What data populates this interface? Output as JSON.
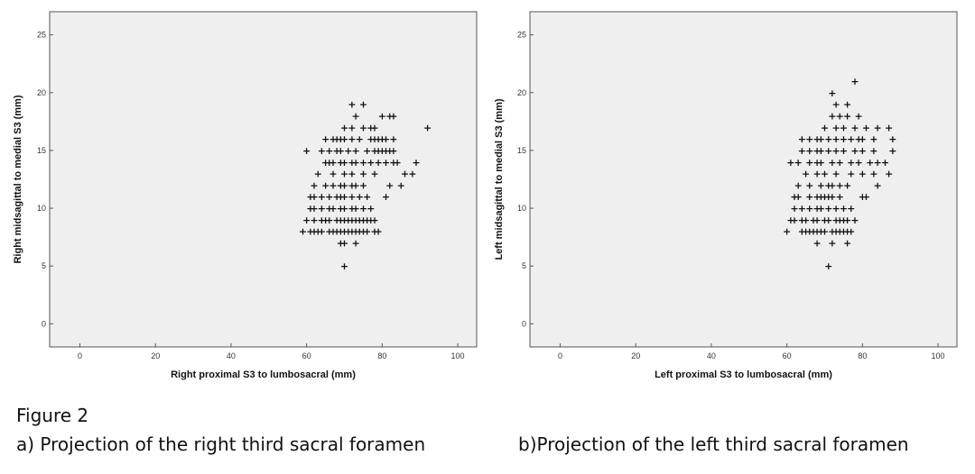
{
  "figure": {
    "label": "Figure 2",
    "caption_a": "a) Projection of the right third sacral foramen",
    "caption_b": "b)Projection of the left third sacral foramen"
  },
  "colors": {
    "plot_bg": "#efefef",
    "frame": "#555555",
    "marker": "#111111"
  },
  "chart_data": [
    {
      "type": "scatter",
      "panel": "a",
      "xlabel": "Right proximal S3 to lumbosacral (mm)",
      "ylabel": "Right midsagittal to medial S3 (mm)",
      "xlim": [
        -8,
        105
      ],
      "ylim": [
        -2,
        27
      ],
      "x_ticks": [
        0,
        20,
        40,
        60,
        80,
        100
      ],
      "y_ticks": [
        0,
        5,
        10,
        15,
        20,
        25
      ],
      "grid": false,
      "marker": "+",
      "points": [
        [
          59,
          8
        ],
        [
          61,
          8
        ],
        [
          62,
          8
        ],
        [
          63,
          8
        ],
        [
          64,
          8
        ],
        [
          66,
          8
        ],
        [
          67,
          8
        ],
        [
          68,
          8
        ],
        [
          69,
          8
        ],
        [
          70,
          8
        ],
        [
          71,
          8
        ],
        [
          72,
          8
        ],
        [
          73,
          8
        ],
        [
          74,
          8
        ],
        [
          75,
          8
        ],
        [
          76,
          8
        ],
        [
          78,
          8
        ],
        [
          79,
          8
        ],
        [
          60,
          9
        ],
        [
          62,
          9
        ],
        [
          64,
          9
        ],
        [
          65,
          9
        ],
        [
          66,
          9
        ],
        [
          68,
          9
        ],
        [
          69,
          9
        ],
        [
          70,
          9
        ],
        [
          71,
          9
        ],
        [
          72,
          9
        ],
        [
          73,
          9
        ],
        [
          74,
          9
        ],
        [
          75,
          9
        ],
        [
          76,
          9
        ],
        [
          77,
          9
        ],
        [
          78,
          9
        ],
        [
          61,
          10
        ],
        [
          62,
          10
        ],
        [
          64,
          10
        ],
        [
          66,
          10
        ],
        [
          67,
          10
        ],
        [
          69,
          10
        ],
        [
          70,
          10
        ],
        [
          72,
          10
        ],
        [
          73,
          10
        ],
        [
          75,
          10
        ],
        [
          77,
          10
        ],
        [
          61,
          11
        ],
        [
          62,
          11
        ],
        [
          64,
          11
        ],
        [
          66,
          11
        ],
        [
          68,
          11
        ],
        [
          69,
          11
        ],
        [
          70,
          11
        ],
        [
          72,
          11
        ],
        [
          74,
          11
        ],
        [
          76,
          11
        ],
        [
          81,
          11
        ],
        [
          62,
          12
        ],
        [
          65,
          12
        ],
        [
          67,
          12
        ],
        [
          69,
          12
        ],
        [
          70,
          12
        ],
        [
          72,
          12
        ],
        [
          73,
          12
        ],
        [
          75,
          12
        ],
        [
          82,
          12
        ],
        [
          63,
          13
        ],
        [
          67,
          13
        ],
        [
          70,
          13
        ],
        [
          72,
          13
        ],
        [
          75,
          13
        ],
        [
          78,
          13
        ],
        [
          65,
          14
        ],
        [
          66,
          14
        ],
        [
          67,
          14
        ],
        [
          69,
          14
        ],
        [
          70,
          14
        ],
        [
          72,
          14
        ],
        [
          73,
          14
        ],
        [
          75,
          14
        ],
        [
          77,
          14
        ],
        [
          79,
          14
        ],
        [
          81,
          14
        ],
        [
          83,
          14
        ],
        [
          84,
          14
        ],
        [
          89,
          14
        ],
        [
          60,
          15
        ],
        [
          64,
          15
        ],
        [
          66,
          15
        ],
        [
          68,
          15
        ],
        [
          69,
          15
        ],
        [
          71,
          15
        ],
        [
          73,
          15
        ],
        [
          76,
          15
        ],
        [
          78,
          15
        ],
        [
          79,
          15
        ],
        [
          80,
          15
        ],
        [
          81,
          15
        ],
        [
          82,
          15
        ],
        [
          83,
          15
        ],
        [
          65,
          16
        ],
        [
          67,
          16
        ],
        [
          68,
          16
        ],
        [
          69,
          16
        ],
        [
          70,
          16
        ],
        [
          72,
          16
        ],
        [
          74,
          16
        ],
        [
          77,
          16
        ],
        [
          79,
          16
        ],
        [
          80,
          16
        ],
        [
          81,
          16
        ],
        [
          83,
          16
        ],
        [
          70,
          17
        ],
        [
          72,
          17
        ],
        [
          75,
          17
        ],
        [
          77,
          17
        ],
        [
          78,
          17
        ],
        [
          92,
          17
        ],
        [
          73,
          18
        ],
        [
          80,
          18
        ],
        [
          82,
          18
        ],
        [
          83,
          18
        ],
        [
          72,
          19
        ],
        [
          75,
          19
        ],
        [
          85,
          12
        ],
        [
          86,
          13
        ],
        [
          88,
          13
        ],
        [
          78,
          16
        ],
        [
          70,
          7
        ],
        [
          73,
          7
        ],
        [
          69,
          7
        ],
        [
          70,
          5
        ]
      ]
    },
    {
      "type": "scatter",
      "panel": "b",
      "xlabel": "Left proximal S3 to lumbosacral (mm)",
      "ylabel": "Left midsagittal to medial S3 (mm)",
      "xlim": [
        -8,
        105
      ],
      "ylim": [
        -2,
        27
      ],
      "x_ticks": [
        0,
        20,
        40,
        60,
        80,
        100
      ],
      "y_ticks": [
        0,
        5,
        10,
        15,
        20,
        25
      ],
      "grid": false,
      "marker": "+",
      "points": [
        [
          60,
          8
        ],
        [
          64,
          8
        ],
        [
          65,
          8
        ],
        [
          66,
          8
        ],
        [
          67,
          8
        ],
        [
          68,
          8
        ],
        [
          69,
          8
        ],
        [
          70,
          8
        ],
        [
          72,
          8
        ],
        [
          73,
          8
        ],
        [
          74,
          8
        ],
        [
          75,
          8
        ],
        [
          76,
          8
        ],
        [
          77,
          8
        ],
        [
          61,
          9
        ],
        [
          62,
          9
        ],
        [
          64,
          9
        ],
        [
          65,
          9
        ],
        [
          67,
          9
        ],
        [
          68,
          9
        ],
        [
          70,
          9
        ],
        [
          71,
          9
        ],
        [
          73,
          9
        ],
        [
          74,
          9
        ],
        [
          75,
          9
        ],
        [
          76,
          9
        ],
        [
          78,
          9
        ],
        [
          62,
          10
        ],
        [
          64,
          10
        ],
        [
          66,
          10
        ],
        [
          68,
          10
        ],
        [
          69,
          10
        ],
        [
          71,
          10
        ],
        [
          73,
          10
        ],
        [
          75,
          10
        ],
        [
          77,
          10
        ],
        [
          62,
          11
        ],
        [
          63,
          11
        ],
        [
          66,
          11
        ],
        [
          68,
          11
        ],
        [
          69,
          11
        ],
        [
          70,
          11
        ],
        [
          71,
          11
        ],
        [
          72,
          11
        ],
        [
          74,
          11
        ],
        [
          80,
          11
        ],
        [
          81,
          11
        ],
        [
          63,
          12
        ],
        [
          66,
          12
        ],
        [
          69,
          12
        ],
        [
          71,
          12
        ],
        [
          72,
          12
        ],
        [
          74,
          12
        ],
        [
          76,
          12
        ],
        [
          84,
          12
        ],
        [
          65,
          13
        ],
        [
          68,
          13
        ],
        [
          70,
          13
        ],
        [
          73,
          13
        ],
        [
          77,
          13
        ],
        [
          80,
          13
        ],
        [
          83,
          13
        ],
        [
          87,
          13
        ],
        [
          61,
          14
        ],
        [
          63,
          14
        ],
        [
          66,
          14
        ],
        [
          68,
          14
        ],
        [
          69,
          14
        ],
        [
          72,
          14
        ],
        [
          74,
          14
        ],
        [
          77,
          14
        ],
        [
          79,
          14
        ],
        [
          82,
          14
        ],
        [
          84,
          14
        ],
        [
          86,
          14
        ],
        [
          64,
          15
        ],
        [
          66,
          15
        ],
        [
          68,
          15
        ],
        [
          69,
          15
        ],
        [
          71,
          15
        ],
        [
          73,
          15
        ],
        [
          75,
          15
        ],
        [
          78,
          15
        ],
        [
          80,
          15
        ],
        [
          83,
          15
        ],
        [
          88,
          15
        ],
        [
          64,
          16
        ],
        [
          66,
          16
        ],
        [
          68,
          16
        ],
        [
          69,
          16
        ],
        [
          71,
          16
        ],
        [
          73,
          16
        ],
        [
          75,
          16
        ],
        [
          77,
          16
        ],
        [
          79,
          16
        ],
        [
          80,
          16
        ],
        [
          83,
          16
        ],
        [
          88,
          16
        ],
        [
          70,
          17
        ],
        [
          73,
          17
        ],
        [
          75,
          17
        ],
        [
          78,
          17
        ],
        [
          81,
          17
        ],
        [
          84,
          17
        ],
        [
          87,
          17
        ],
        [
          72,
          18
        ],
        [
          74,
          18
        ],
        [
          76,
          18
        ],
        [
          79,
          18
        ],
        [
          73,
          19
        ],
        [
          76,
          19
        ],
        [
          72,
          20
        ],
        [
          78,
          21
        ],
        [
          68,
          7
        ],
        [
          72,
          7
        ],
        [
          76,
          7
        ],
        [
          71,
          5
        ]
      ]
    }
  ]
}
